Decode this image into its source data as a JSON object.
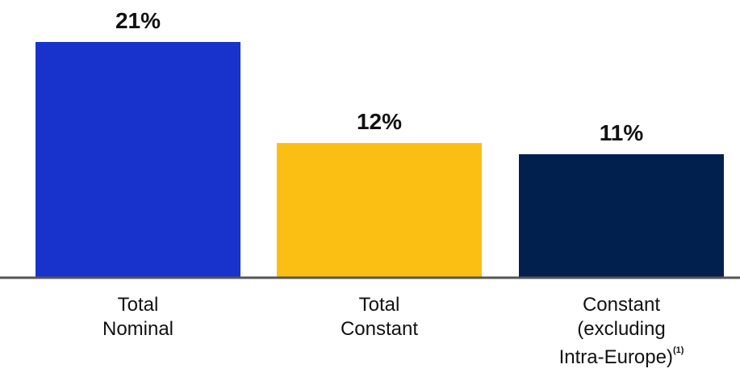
{
  "chart_data": {
    "type": "bar",
    "categories": [
      [
        "Total",
        "Nominal"
      ],
      [
        "Total",
        "Constant"
      ],
      [
        "Constant",
        "(excluding",
        "Intra-Europe)"
      ]
    ],
    "values": [
      21,
      12,
      11
    ],
    "value_labels": [
      "21%",
      "12%",
      "11%"
    ],
    "footnote_marker": "(1)",
    "colors": [
      "#1733CC",
      "#FBBF14",
      "#02204E"
    ],
    "axis_color": "#555555",
    "ylim": [
      0,
      21
    ],
    "grid": false,
    "title": "",
    "xlabel": "",
    "ylabel": ""
  }
}
